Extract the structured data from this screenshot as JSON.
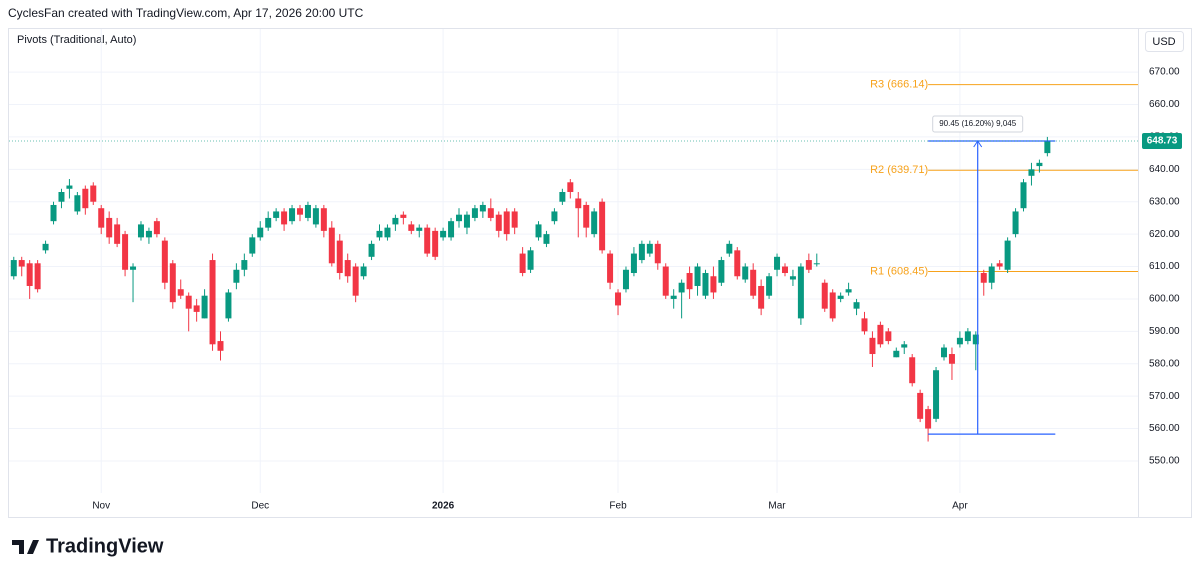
{
  "header": "CyclesFan created with TradingView.com, Apr 17, 2026 20:00 UTC",
  "indicator": "Pivots (Traditional, Auto)",
  "currency": "USD",
  "logo": "TradingView",
  "chart_data": {
    "type": "candlestick",
    "up_color": "#089981",
    "down_color": "#f23645",
    "grid": true,
    "xlim": [
      -0.6,
      141.4
    ],
    "ylim": [
      532.4,
      683.3
    ],
    "xticks": [
      {
        "value": 11,
        "label": "Nov"
      },
      {
        "value": 31,
        "label": "Dec"
      },
      {
        "value": 54,
        "label": "2026"
      },
      {
        "value": 76,
        "label": "Feb"
      },
      {
        "value": 96,
        "label": "Mar"
      },
      {
        "value": 119,
        "label": "Apr"
      }
    ],
    "yticks": [
      {
        "value": 550,
        "label": "550.00"
      },
      {
        "value": 560,
        "label": "560.00"
      },
      {
        "value": 570,
        "label": "570.00"
      },
      {
        "value": 580,
        "label": "580.00"
      },
      {
        "value": 590,
        "label": "590.00"
      },
      {
        "value": 600,
        "label": "600.00"
      },
      {
        "value": 610,
        "label": "610.00"
      },
      {
        "value": 620,
        "label": "620.00"
      },
      {
        "value": 630,
        "label": "630.00"
      },
      {
        "value": 640,
        "label": "640.00"
      },
      {
        "value": 650,
        "label": "650.00"
      },
      {
        "value": 660,
        "label": "660.00"
      },
      {
        "value": 670,
        "label": "670.00"
      }
    ],
    "open": [
      607,
      612,
      611,
      611,
      615,
      624,
      630,
      634,
      627,
      634,
      635,
      628,
      625,
      623,
      620,
      609,
      619,
      619,
      624,
      618,
      611,
      603,
      601,
      598,
      594,
      612,
      587,
      594,
      605,
      609,
      614,
      619,
      622,
      625,
      627,
      624,
      628,
      625,
      623,
      628,
      622,
      618,
      612,
      610,
      607,
      613,
      619,
      619,
      623,
      626,
      623,
      621,
      622,
      621,
      619,
      619,
      624,
      622,
      625,
      627,
      628,
      626,
      627,
      627,
      614,
      609,
      619,
      617,
      624,
      630,
      636,
      631,
      629,
      620,
      630,
      614,
      602,
      603,
      608,
      612,
      614,
      617,
      610,
      600,
      602,
      608,
      604,
      601,
      607,
      605,
      614,
      615,
      606,
      609,
      604,
      601,
      609,
      610,
      606,
      594,
      612,
      611,
      605,
      602,
      600,
      602,
      597,
      594,
      588,
      592,
      590,
      582,
      585,
      582,
      571,
      566,
      563,
      582,
      583,
      586,
      587,
      586,
      608,
      605,
      611,
      609,
      620,
      628,
      638,
      641,
      645
    ],
    "high": [
      613,
      613,
      612,
      612,
      618,
      630,
      634,
      637,
      633,
      635,
      636,
      629,
      627,
      625,
      621,
      611,
      624,
      622,
      625,
      619,
      612,
      606,
      602,
      600,
      603,
      614,
      590,
      603,
      611,
      614,
      620,
      624,
      627,
      628,
      628,
      629,
      629,
      630,
      629,
      629,
      624,
      620,
      614,
      611,
      611,
      618,
      623,
      623,
      626,
      627,
      624,
      623,
      623,
      622,
      622,
      625,
      628,
      627,
      629,
      630,
      631,
      627,
      628,
      628,
      616,
      616,
      624,
      621,
      628,
      634,
      637,
      633,
      630,
      628,
      631,
      615,
      603,
      610,
      616,
      618,
      618,
      618,
      611,
      603,
      606,
      610,
      611,
      609,
      610,
      613,
      618,
      616,
      611,
      611,
      606,
      608,
      614,
      611,
      609,
      611,
      614,
      614,
      606,
      603,
      602,
      605,
      600,
      596,
      590,
      593,
      591,
      585,
      587,
      583,
      572,
      567,
      579,
      586,
      585,
      590,
      591,
      590,
      609,
      611,
      612,
      619,
      628,
      637,
      642,
      643,
      650
    ],
    "low": [
      606,
      607,
      600,
      602,
      614,
      623,
      628,
      631,
      626,
      626,
      629,
      620,
      617,
      616,
      607,
      599,
      618,
      617,
      619,
      603,
      597,
      600,
      590,
      593,
      594,
      584,
      581,
      593,
      603,
      607,
      613,
      618,
      621,
      624,
      621,
      623,
      624,
      624,
      622,
      619,
      610,
      606,
      605,
      599,
      606,
      612,
      618,
      618,
      621,
      623,
      620,
      619,
      613,
      612,
      618,
      618,
      622,
      620,
      624,
      625,
      624,
      619,
      618,
      620,
      607,
      608,
      618,
      616,
      623,
      629,
      631,
      619,
      619,
      619,
      614,
      603,
      595,
      602,
      607,
      611,
      613,
      609,
      600,
      597,
      594,
      600,
      601,
      600,
      600,
      604,
      613,
      606,
      605,
      600,
      595,
      600,
      607,
      607,
      604,
      592,
      608,
      610,
      596,
      593,
      599,
      601,
      595,
      589,
      579,
      585,
      586,
      582,
      583,
      573,
      562,
      556,
      562,
      581,
      575,
      585,
      586,
      578,
      601,
      603,
      609,
      608,
      619,
      627,
      635,
      639,
      644
    ],
    "close": [
      612,
      610,
      604,
      603,
      617,
      629,
      633,
      635,
      632,
      628,
      630,
      622,
      619,
      617,
      609,
      610,
      623,
      621,
      620,
      605,
      599,
      601,
      597,
      596,
      601,
      586,
      584,
      602,
      609,
      612,
      619,
      622,
      625,
      627,
      623,
      628,
      626,
      629,
      628,
      621,
      611,
      608,
      607,
      601,
      610,
      617,
      621,
      622,
      625,
      625,
      621,
      622,
      614,
      613,
      621,
      624,
      626,
      626,
      628,
      629,
      625,
      621,
      620,
      622,
      608,
      615,
      623,
      620,
      627,
      633,
      633,
      628,
      622,
      627,
      615,
      605,
      598,
      609,
      614,
      617,
      617,
      611,
      601,
      601,
      605,
      603,
      610,
      608,
      602,
      612,
      617,
      607,
      610,
      601,
      597,
      607,
      613,
      608,
      607,
      610,
      609,
      611,
      597,
      594,
      601,
      603,
      599,
      590,
      583,
      586,
      587,
      584,
      586,
      574,
      563,
      560,
      578,
      585,
      580,
      588,
      590,
      589,
      605,
      610,
      610,
      618,
      627,
      636,
      640,
      642,
      648.73
    ],
    "pivots": [
      {
        "name": "R3",
        "value": 666.14,
        "label": "R3 (666.14)"
      },
      {
        "name": "R2",
        "value": 639.71,
        "label": "R2 (639.71)"
      },
      {
        "name": "R1",
        "value": 608.45,
        "label": "R1 (608.45)"
      }
    ],
    "pivot_x": 115,
    "measure": {
      "from": 558.28,
      "to": 648.73,
      "x": [
        115,
        131
      ],
      "label": "90.45 (16.20%) 9,045"
    }
  }
}
